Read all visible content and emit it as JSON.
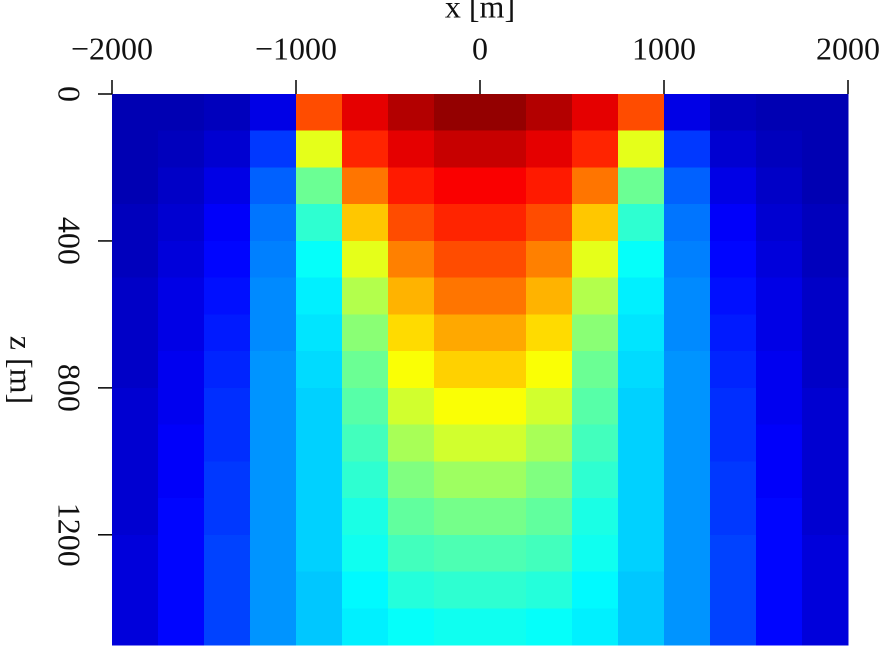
{
  "chart_data": {
    "type": "heatmap",
    "colormap": "jet",
    "x_label": "x [m]",
    "y_label": "z [m]",
    "xlim": [
      -2000,
      2000
    ],
    "xticks": [
      {
        "value": -2000,
        "label": "−2000"
      },
      {
        "value": -1000,
        "label": "−1000"
      },
      0,
      1000,
      2000
    ],
    "ylim": [
      0,
      1500
    ],
    "y_inverted": true,
    "yticks": [
      0,
      400,
      800,
      1200
    ],
    "x": [
      -1875,
      -1625,
      -1375,
      -1125,
      -875,
      -625,
      -375,
      -125,
      125,
      375,
      625,
      875,
      1125,
      1375,
      1625,
      1875
    ],
    "y": [
      50,
      150,
      250,
      350,
      450,
      550,
      650,
      750,
      850,
      950,
      1050,
      1150,
      1250,
      1350,
      1450
    ],
    "z": [
      [
        0.05,
        0.05,
        0.06,
        0.1,
        0.8,
        0.9,
        0.95,
        0.98,
        0.98,
        0.95,
        0.9,
        0.8,
        0.1,
        0.06,
        0.05,
        0.05
      ],
      [
        0.05,
        0.06,
        0.08,
        0.18,
        0.6,
        0.84,
        0.9,
        0.93,
        0.93,
        0.9,
        0.84,
        0.6,
        0.18,
        0.08,
        0.06,
        0.05
      ],
      [
        0.05,
        0.07,
        0.1,
        0.22,
        0.48,
        0.76,
        0.85,
        0.88,
        0.88,
        0.85,
        0.76,
        0.48,
        0.22,
        0.1,
        0.07,
        0.05
      ],
      [
        0.06,
        0.08,
        0.12,
        0.24,
        0.42,
        0.68,
        0.8,
        0.84,
        0.84,
        0.8,
        0.68,
        0.42,
        0.24,
        0.12,
        0.08,
        0.06
      ],
      [
        0.06,
        0.09,
        0.13,
        0.25,
        0.38,
        0.6,
        0.75,
        0.8,
        0.8,
        0.75,
        0.6,
        0.38,
        0.25,
        0.13,
        0.09,
        0.06
      ],
      [
        0.07,
        0.1,
        0.14,
        0.26,
        0.36,
        0.55,
        0.7,
        0.76,
        0.76,
        0.7,
        0.55,
        0.36,
        0.26,
        0.14,
        0.1,
        0.07
      ],
      [
        0.07,
        0.1,
        0.15,
        0.26,
        0.35,
        0.51,
        0.66,
        0.71,
        0.71,
        0.66,
        0.51,
        0.35,
        0.26,
        0.15,
        0.1,
        0.07
      ],
      [
        0.07,
        0.11,
        0.16,
        0.27,
        0.34,
        0.48,
        0.62,
        0.67,
        0.67,
        0.62,
        0.48,
        0.34,
        0.27,
        0.16,
        0.11,
        0.07
      ],
      [
        0.08,
        0.11,
        0.17,
        0.27,
        0.33,
        0.46,
        0.58,
        0.62,
        0.62,
        0.58,
        0.46,
        0.33,
        0.27,
        0.17,
        0.11,
        0.08
      ],
      [
        0.08,
        0.12,
        0.17,
        0.27,
        0.33,
        0.44,
        0.54,
        0.58,
        0.58,
        0.54,
        0.44,
        0.33,
        0.27,
        0.17,
        0.12,
        0.08
      ],
      [
        0.08,
        0.12,
        0.18,
        0.27,
        0.33,
        0.42,
        0.5,
        0.53,
        0.53,
        0.5,
        0.42,
        0.33,
        0.27,
        0.18,
        0.12,
        0.08
      ],
      [
        0.08,
        0.13,
        0.18,
        0.27,
        0.33,
        0.4,
        0.47,
        0.49,
        0.49,
        0.47,
        0.4,
        0.33,
        0.27,
        0.18,
        0.13,
        0.08
      ],
      [
        0.09,
        0.13,
        0.19,
        0.27,
        0.33,
        0.39,
        0.44,
        0.45,
        0.45,
        0.44,
        0.39,
        0.33,
        0.27,
        0.19,
        0.13,
        0.09
      ],
      [
        0.09,
        0.13,
        0.19,
        0.27,
        0.32,
        0.37,
        0.41,
        0.42,
        0.42,
        0.41,
        0.37,
        0.32,
        0.27,
        0.19,
        0.13,
        0.09
      ],
      [
        0.09,
        0.13,
        0.19,
        0.27,
        0.32,
        0.36,
        0.38,
        0.39,
        0.39,
        0.38,
        0.36,
        0.32,
        0.27,
        0.19,
        0.13,
        0.09
      ]
    ]
  }
}
